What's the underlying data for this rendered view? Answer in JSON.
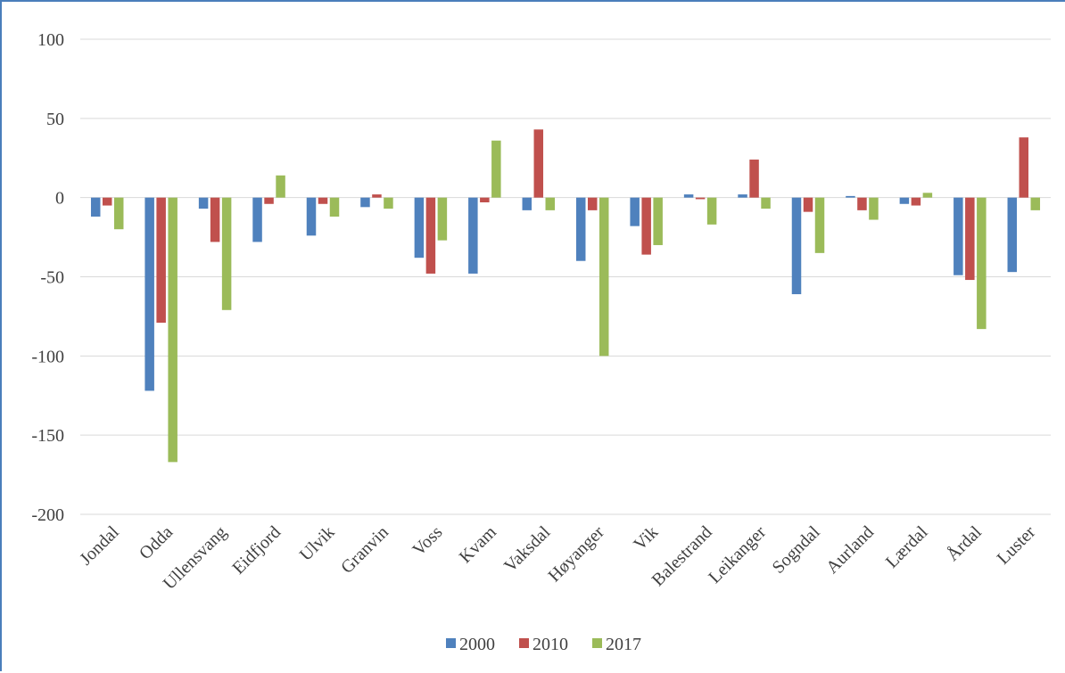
{
  "chart_data": {
    "type": "bar",
    "title": "",
    "xlabel": "",
    "ylabel": "",
    "ylim": [
      -200,
      100
    ],
    "yticks": [
      100,
      50,
      0,
      -50,
      -100,
      -150,
      -200
    ],
    "grid": true,
    "legend_position": "bottom",
    "categories": [
      "Jondal",
      "Odda",
      "Ullensvang",
      "Eidfjord",
      "Ulvik",
      "Granvin",
      "Voss",
      "Kvam",
      "Vaksdal",
      "Høyanger",
      "Vik",
      "Balestrand",
      "Leikanger",
      "Sogndal",
      "Aurland",
      "Lærdal",
      "Årdal",
      "Luster"
    ],
    "series": [
      {
        "name": "2000",
        "color": "#4f81bd",
        "values": [
          -12,
          -122,
          -7,
          -28,
          -24,
          -6,
          -38,
          -48,
          -8,
          -40,
          -18,
          2,
          2,
          -61,
          1,
          -4,
          -49,
          -47
        ]
      },
      {
        "name": "2010",
        "color": "#c0504d",
        "values": [
          -5,
          -79,
          -28,
          -4,
          -4,
          2,
          -48,
          -3,
          43,
          -8,
          -36,
          -1,
          24,
          -9,
          -8,
          -5,
          -52,
          38
        ]
      },
      {
        "name": "2017",
        "color": "#9bbb59",
        "values": [
          -20,
          -167,
          -71,
          14,
          -12,
          -7,
          -27,
          36,
          -8,
          -100,
          -30,
          -17,
          -7,
          -35,
          -14,
          3,
          -83,
          -8
        ]
      }
    ]
  }
}
